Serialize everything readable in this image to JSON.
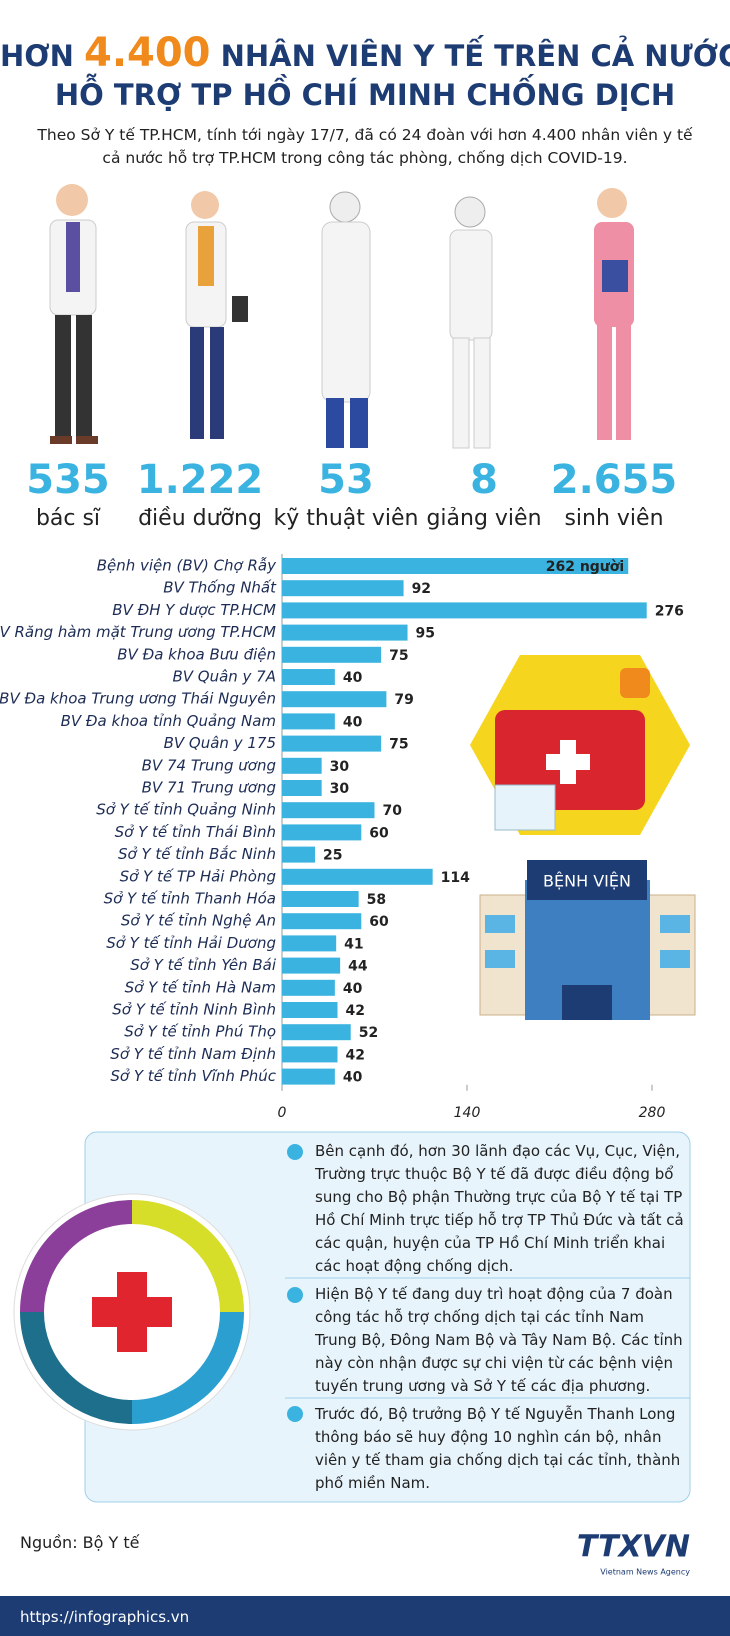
{
  "header": {
    "title_prefix": "HƠN",
    "title_highlight": "4.400",
    "title_rest": "NHÂN VIÊN Y TẾ TRÊN CẢ NƯỚC",
    "title_line2": "HỖ TRỢ TP HỒ CHÍ MINH CHỐNG DỊCH",
    "intro": "Theo Sở Y tế TP.HCM,  tính tới ngày 17/7, đã có 24 đoàn với hơn 4.400 nhân viên y tế cả nước hỗ trợ TP.HCM trong công tác phòng, chống dịch COVID-19."
  },
  "stats": [
    {
      "value": "535",
      "label": "bác sĩ"
    },
    {
      "value": "1.222",
      "label": "điều dưỡng"
    },
    {
      "value": "53",
      "label": "kỹ thuật viên"
    },
    {
      "value": "8",
      "label": "giảng viên"
    },
    {
      "value": "2.655",
      "label": "sinh viên"
    }
  ],
  "chart_data": {
    "type": "bar",
    "orientation": "horizontal",
    "color": "#3bb3e0",
    "categories": [
      "Bệnh viện (BV) Chợ Rẫy",
      "BV Thống Nhất",
      "BV ĐH Y dược TP.HCM",
      "BV Răng hàm mặt Trung ương TP.HCM",
      "BV Đa khoa Bưu điện",
      "BV Quân y 7A",
      "BV Đa khoa Trung ương Thái Nguyên",
      "BV Đa khoa tỉnh Quảng Nam",
      "BV Quân y 175",
      "BV 74 Trung ương",
      "BV 71 Trung ương",
      "Sở Y tế tỉnh Quảng Ninh",
      "Sở Y tế tỉnh Thái Bình",
      "Sở Y tế tỉnh Bắc Ninh",
      "Sở Y tế TP Hải Phòng",
      "Sở Y tế tỉnh Thanh Hóa",
      "Sở Y tế tỉnh Nghệ An",
      "Sở Y tế tỉnh Hải Dương",
      "Sở Y tế tỉnh Yên Bái",
      "Sở Y tế tỉnh Hà Nam",
      "Sở Y tế tỉnh Ninh Bình",
      "Sở Y tế tỉnh Phú Thọ",
      "Sở Y tế tỉnh Nam Định",
      "Sở Y tế tỉnh Vĩnh Phúc"
    ],
    "values": [
      262,
      92,
      276,
      95,
      75,
      40,
      79,
      40,
      75,
      30,
      30,
      70,
      60,
      25,
      114,
      58,
      60,
      41,
      44,
      40,
      42,
      52,
      42,
      40
    ],
    "value_labels": [
      "262 người",
      "92",
      "276",
      "95",
      "75",
      "40",
      "79",
      "40",
      "75",
      "30",
      "30",
      "70",
      "60",
      "25",
      "114",
      "58",
      "60",
      "41",
      "44",
      "40",
      "42",
      "52",
      "42",
      "40"
    ],
    "xlim": [
      0,
      280
    ],
    "xticks": [
      0,
      140,
      280
    ]
  },
  "hospital_sign": "BỆNH VIỆN",
  "notes": [
    "Bên cạnh đó, hơn 30 lãnh đạo các Vụ, Cục, Viện, Trường trực thuộc Bộ Y tế đã được điều động bổ sung cho Bộ phận Thường trực của Bộ Y tế tại TP Hồ Chí Minh trực tiếp hỗ trợ TP Thủ Đức và tất cả các quận, huyện của TP Hồ Chí Minh triển khai các hoạt động  chống dịch.",
    "Hiện Bộ Y tế đang duy trì hoạt động của 7 đoàn công tác hỗ trợ chống dịch  tại các tỉnh Nam Trung Bộ, Đông Nam Bộ và Tây Nam Bộ. Các tỉnh này còn nhận được sự chi viện từ các bệnh viện tuyến trung ương và Sở Y tế các địa phương.",
    "Trước đó, Bộ trưởng Bộ Y tế Nguyễn Thanh Long thông báo sẽ huy động 10 nghìn cán bộ, nhân viên y tế tham gia chống dịch tại các tỉnh, thành phố miền Nam."
  ],
  "footer": {
    "source": "Nguồn: Bộ Y tế",
    "url": "https://infographics.vn",
    "logo": "TTXVN",
    "logo_sub": "Vietnam News Agency"
  }
}
